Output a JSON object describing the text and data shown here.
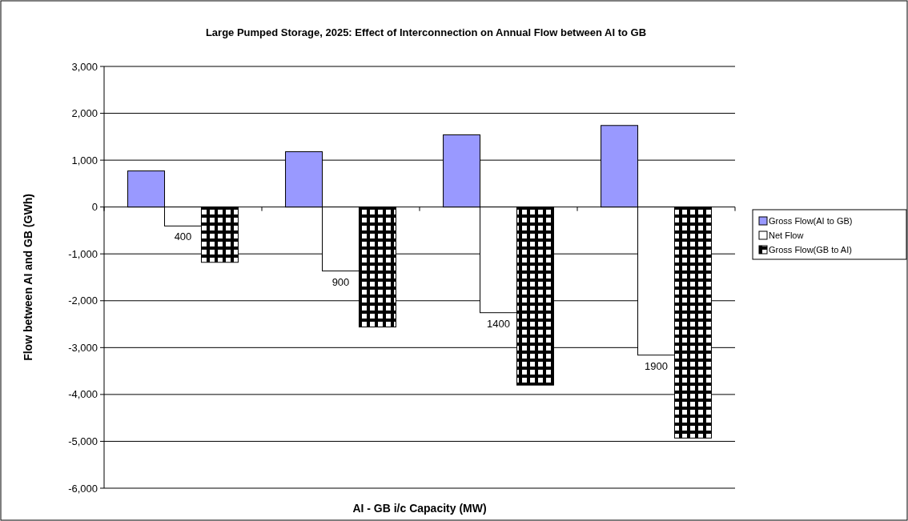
{
  "chart_data": {
    "type": "bar",
    "title": "Large Pumped Storage, 2025:  Effect of Interconnection on Annual Flow between AI to GB",
    "xlabel": "AI - GB i/c Capacity (MW)",
    "ylabel": "Flow between AI and GB (GWh)",
    "categories": [
      "400",
      "900",
      "1400",
      "1900"
    ],
    "series": [
      {
        "name": "Gross Flow(AI to GB)",
        "color": "#9999ff",
        "values": [
          770,
          1180,
          1540,
          1740
        ]
      },
      {
        "name": "Net Flow",
        "color": "#ffffff",
        "values": [
          -405,
          -1365,
          -2255,
          -3160
        ]
      },
      {
        "name": "Gross Flow(GB to AI)",
        "color": "#000000",
        "values": [
          -1180,
          -2560,
          -3800,
          -4930
        ]
      }
    ],
    "ylim": [
      -6000,
      3000
    ],
    "yticks": [
      {
        "value": -6000,
        "label": "-6,000"
      },
      {
        "value": -5000,
        "label": "-5,000"
      },
      {
        "value": -4000,
        "label": "-4,000"
      },
      {
        "value": -3000,
        "label": "-3,000"
      },
      {
        "value": -2000,
        "label": "-2,000"
      },
      {
        "value": -1000,
        "label": "-1,000"
      },
      0,
      {
        "value": 1000,
        "label": "1,000"
      },
      {
        "value": 2000,
        "label": "2,000"
      },
      {
        "value": 3000,
        "label": "3,000"
      }
    ],
    "grid": "y",
    "legend": "right"
  }
}
